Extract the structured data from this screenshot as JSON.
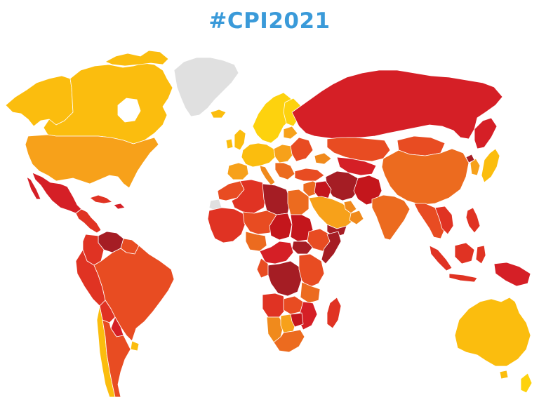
{
  "title": "#CPI2021",
  "colors": {
    "title": "#3a9ad9",
    "cleanest": "#fdd20e",
    "clean": "#fbbd0e",
    "fairly_clean": "#f7a11a",
    "moderate": "#f08a1c",
    "mid": "#ec6b1f",
    "corrupt": "#e84c22",
    "more_corrupt": "#e03323",
    "very_corrupt": "#d51f26",
    "highly_corrupt": "#c4161c",
    "most_corrupt": "#a51d24",
    "no_data": "#e0e0e0",
    "border": "#ffffff",
    "background": "#ffffff"
  }
}
